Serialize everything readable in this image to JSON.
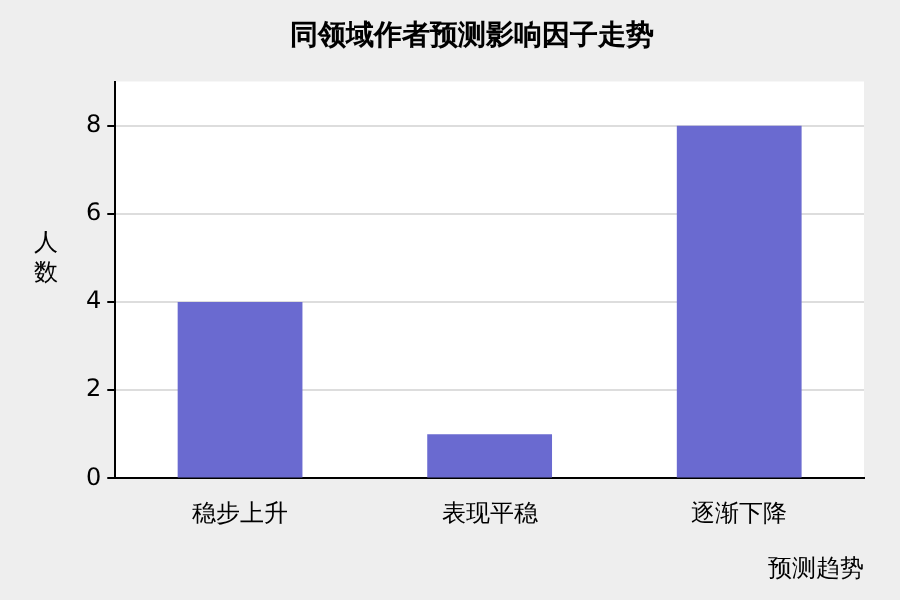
{
  "chart_data": {
    "type": "bar",
    "title": "同领域作者预测影响因子走势",
    "xlabel": "预测趋势",
    "ylabel": "人数",
    "categories": [
      "稳步上升",
      "表现平稳",
      "逐渐下降"
    ],
    "values": [
      4,
      1,
      8
    ],
    "color": "#6a6ad0",
    "ylim": [
      0,
      9
    ],
    "yticks": [
      0,
      2,
      4,
      6,
      8
    ],
    "grid": "y",
    "legend": false
  }
}
